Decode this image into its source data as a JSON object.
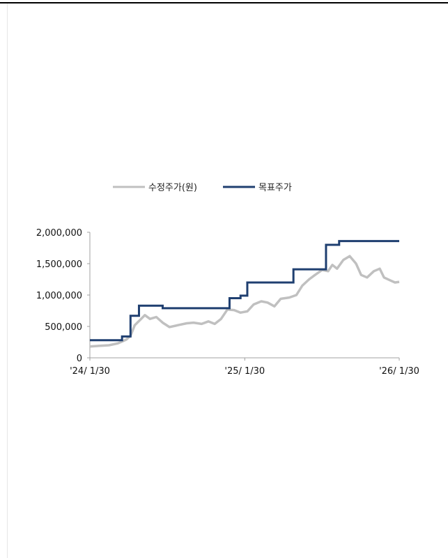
{
  "chart_data": {
    "type": "line",
    "title": "",
    "xlabel": "",
    "ylabel": "",
    "ylim": [
      0,
      2000000
    ],
    "y_ticks": [
      0,
      500000,
      1000000,
      1500000,
      2000000
    ],
    "y_tick_labels": [
      "0",
      "500,000",
      "1,000,000",
      "1,500,000",
      "2,000,000"
    ],
    "x_ticks": [
      "2024-01-30",
      "2025-01-30",
      "2026-01-30"
    ],
    "x_tick_labels": [
      "'24/ 1/30",
      "'25/ 1/30",
      "'26/ 1/30"
    ],
    "xlim": [
      "2024-01-30",
      "2026-01-30"
    ],
    "grid": false,
    "legend_placement": "top",
    "series": [
      {
        "name": "수정주가(원)",
        "color": "#c0c0c0",
        "style": "line",
        "points": [
          [
            "2024-01-30",
            180000
          ],
          [
            "2024-02-20",
            190000
          ],
          [
            "2024-03-15",
            200000
          ],
          [
            "2024-04-05",
            230000
          ],
          [
            "2024-04-25",
            290000
          ],
          [
            "2024-05-05",
            350000
          ],
          [
            "2024-05-15",
            520000
          ],
          [
            "2024-05-30",
            620000
          ],
          [
            "2024-06-08",
            680000
          ],
          [
            "2024-06-20",
            620000
          ],
          [
            "2024-07-05",
            650000
          ],
          [
            "2024-07-20",
            560000
          ],
          [
            "2024-08-05",
            490000
          ],
          [
            "2024-08-25",
            520000
          ],
          [
            "2024-09-15",
            550000
          ],
          [
            "2024-10-01",
            560000
          ],
          [
            "2024-10-20",
            540000
          ],
          [
            "2024-11-05",
            580000
          ],
          [
            "2024-11-20",
            540000
          ],
          [
            "2024-12-05",
            620000
          ],
          [
            "2024-12-20",
            770000
          ],
          [
            "2025-01-05",
            760000
          ],
          [
            "2025-01-20",
            720000
          ],
          [
            "2025-02-05",
            740000
          ],
          [
            "2025-02-20",
            850000
          ],
          [
            "2025-03-10",
            900000
          ],
          [
            "2025-03-25",
            880000
          ],
          [
            "2025-04-10",
            820000
          ],
          [
            "2025-04-25",
            940000
          ],
          [
            "2025-05-15",
            960000
          ],
          [
            "2025-06-01",
            1000000
          ],
          [
            "2025-06-15",
            1150000
          ],
          [
            "2025-07-01",
            1250000
          ],
          [
            "2025-07-15",
            1320000
          ],
          [
            "2025-08-01",
            1400000
          ],
          [
            "2025-08-15",
            1380000
          ],
          [
            "2025-08-25",
            1480000
          ],
          [
            "2025-09-05",
            1420000
          ],
          [
            "2025-09-20",
            1560000
          ],
          [
            "2025-10-05",
            1620000
          ],
          [
            "2025-10-20",
            1500000
          ],
          [
            "2025-11-01",
            1320000
          ],
          [
            "2025-11-15",
            1280000
          ],
          [
            "2025-12-01",
            1380000
          ],
          [
            "2025-12-15",
            1420000
          ],
          [
            "2025-12-25",
            1280000
          ],
          [
            "2026-01-10",
            1230000
          ],
          [
            "2026-01-20",
            1200000
          ],
          [
            "2026-01-30",
            1210000
          ]
        ]
      },
      {
        "name": "목표주가",
        "color": "#1f3f70",
        "style": "step",
        "points": [
          [
            "2024-01-30",
            280000
          ],
          [
            "2024-04-15",
            340000
          ],
          [
            "2024-05-05",
            670000
          ],
          [
            "2024-05-25",
            830000
          ],
          [
            "2024-07-20",
            790000
          ],
          [
            "2024-12-25",
            950000
          ],
          [
            "2025-01-20",
            990000
          ],
          [
            "2025-02-05",
            1200000
          ],
          [
            "2025-05-25",
            1410000
          ],
          [
            "2025-08-10",
            1800000
          ],
          [
            "2025-09-10",
            1860000
          ],
          [
            "2026-01-30",
            1860000
          ]
        ]
      }
    ]
  }
}
